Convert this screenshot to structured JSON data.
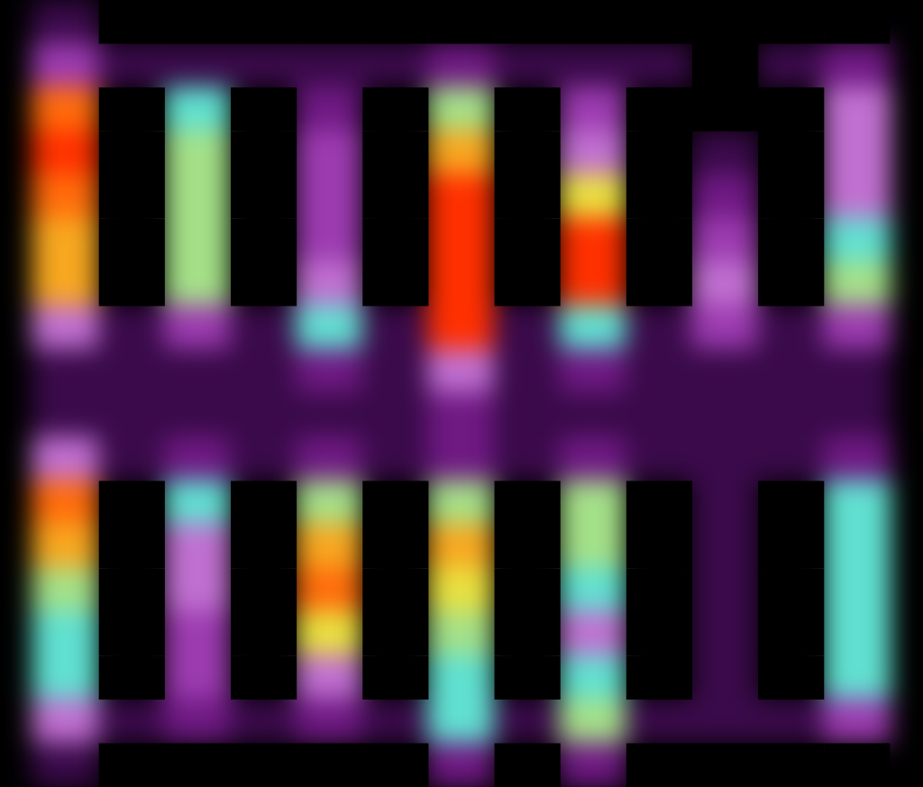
{
  "chart_data": {
    "type": "heatmap",
    "tick_labels": false,
    "xlim": [
      0,
      14
    ],
    "ylim": [
      0,
      18
    ],
    "color_range": [
      0,
      10
    ],
    "cells": [
      [
        1,
        0,
        0,
        0,
        0,
        0,
        0,
        0,
        0,
        0,
        0,
        0,
        0
      ],
      [
        3,
        1,
        1,
        1,
        1,
        1,
        2,
        1,
        1,
        1,
        0,
        1,
        2
      ],
      [
        9,
        0,
        5,
        0,
        2,
        0,
        6,
        0,
        3,
        0,
        0,
        0,
        4
      ],
      [
        10,
        0,
        6,
        0,
        3,
        0,
        8,
        0,
        4,
        0,
        1,
        0,
        4
      ],
      [
        9,
        0,
        6,
        0,
        3,
        0,
        10,
        0,
        7,
        0,
        2,
        0,
        4
      ],
      [
        8,
        0,
        6,
        0,
        3,
        0,
        10,
        0,
        10,
        0,
        3,
        0,
        5
      ],
      [
        8,
        0,
        6,
        0,
        4,
        0,
        10,
        0,
        10,
        0,
        4,
        0,
        6
      ],
      [
        4,
        1,
        3,
        1,
        5,
        1,
        10,
        1,
        5,
        1,
        3,
        1,
        3
      ],
      [
        1,
        1,
        1,
        1,
        2,
        1,
        4,
        1,
        2,
        1,
        1,
        1,
        1
      ],
      [
        1,
        1,
        1,
        1,
        1,
        1,
        2,
        1,
        1,
        1,
        1,
        1,
        1
      ],
      [
        4,
        1,
        2,
        1,
        2,
        1,
        2,
        1,
        2,
        1,
        1,
        1,
        2
      ],
      [
        9,
        0,
        5,
        0,
        6,
        0,
        6,
        0,
        6,
        0,
        1,
        0,
        5
      ],
      [
        8,
        0,
        4,
        0,
        8,
        0,
        8,
        0,
        6,
        0,
        1,
        0,
        5
      ],
      [
        6,
        0,
        4,
        0,
        9,
        0,
        7,
        0,
        5,
        0,
        1,
        0,
        5
      ],
      [
        5,
        0,
        3,
        0,
        7,
        0,
        6,
        0,
        4,
        0,
        1,
        0,
        5
      ],
      [
        5,
        0,
        3,
        0,
        4,
        0,
        5,
        0,
        5,
        0,
        1,
        0,
        5
      ],
      [
        4,
        1,
        2,
        1,
        2,
        1,
        5,
        1,
        6,
        1,
        1,
        1,
        3
      ],
      [
        1,
        0,
        0,
        0,
        0,
        0,
        2,
        0,
        2,
        0,
        0,
        0,
        0
      ]
    ]
  }
}
